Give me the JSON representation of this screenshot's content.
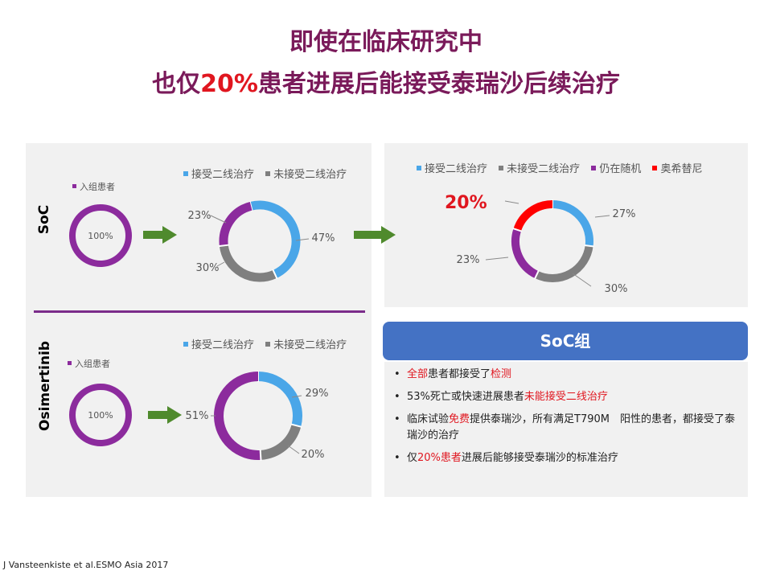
{
  "title": {
    "line1": "即使在临床研究中",
    "line2_pre": "也仅",
    "line2_highlight": "20%",
    "line2_post": "患者进展后能接受泰瑞沙后续治疗"
  },
  "colors": {
    "title": "#7a1a5a",
    "highlight": "#e0161f",
    "received_second_line": "#4aa6e8",
    "not_received_second_line": "#7f7f7f",
    "still_randomized": "#8c2b9d",
    "osimertinib": "#ff0000",
    "arrow": "#4f8a2d",
    "soc_header": "#4472c4"
  },
  "soc_panel": {
    "side_label": "SoC",
    "legend": [
      "接受二线治疗",
      "未接受二线治疗"
    ],
    "enrolled_legend": "入组患者"
  },
  "osi_panel": {
    "side_label": "Osimertinib",
    "legend": [
      "接受二线治疗",
      "未接受二线治疗"
    ],
    "enrolled_legend": "入组患者"
  },
  "right_panel": {
    "legend": [
      "接受二线治疗",
      "未接受二线治疗",
      "仍在随机",
      "奥希替尼"
    ],
    "callout": "20%"
  },
  "chart_data": [
    {
      "type": "pie",
      "name": "SoC 入组患者",
      "categories": [
        "入组患者"
      ],
      "values": [
        100
      ],
      "labels": [
        "100%"
      ]
    },
    {
      "type": "pie",
      "name": "SoC",
      "categories": [
        "接受二线治疗",
        "未接受二线治疗",
        "仍在随机"
      ],
      "values": [
        47,
        30,
        23
      ],
      "labels": [
        "47%",
        "30%",
        "23%"
      ]
    },
    {
      "type": "pie",
      "name": "SoC 细分",
      "categories": [
        "接受二线治疗",
        "未接受二线治疗",
        "仍在随机",
        "奥希替尼"
      ],
      "values": [
        27,
        30,
        23,
        20
      ],
      "labels": [
        "27%",
        "30%",
        "23%",
        "20%"
      ]
    },
    {
      "type": "pie",
      "name": "Osimertinib 入组患者",
      "categories": [
        "入组患者"
      ],
      "values": [
        100
      ],
      "labels": [
        "100%"
      ]
    },
    {
      "type": "pie",
      "name": "Osimertinib",
      "categories": [
        "接受二线治疗",
        "未接受二线治疗",
        "仍在随机"
      ],
      "values": [
        29,
        20,
        51
      ],
      "labels": [
        "29%",
        "20%",
        "51%"
      ]
    }
  ],
  "soc_box": {
    "header": "SoC组",
    "bullet": "•",
    "items": [
      {
        "p1": "",
        "r1": "全部",
        "p2": "患者都接受了",
        "r2": "检测",
        "p3": ""
      },
      {
        "p1": "53%死亡或快速进展患者",
        "r1": "未能接受二线治疗",
        "p2": "",
        "r2": "",
        "p3": ""
      },
      {
        "p1": "临床试验",
        "r1": "免费",
        "p2": "提供泰瑞沙，所有满足T790M　阳性的患者，都接受了泰瑞沙的治疗",
        "r2": "",
        "p3": ""
      },
      {
        "p1": "仅",
        "r1": "20%患者",
        "p2": "进展后能够接受泰瑞沙的标准治疗",
        "r2": "",
        "p3": ""
      }
    ]
  },
  "citation": "J Vansteenkiste et al.ESMO Asia 2017"
}
